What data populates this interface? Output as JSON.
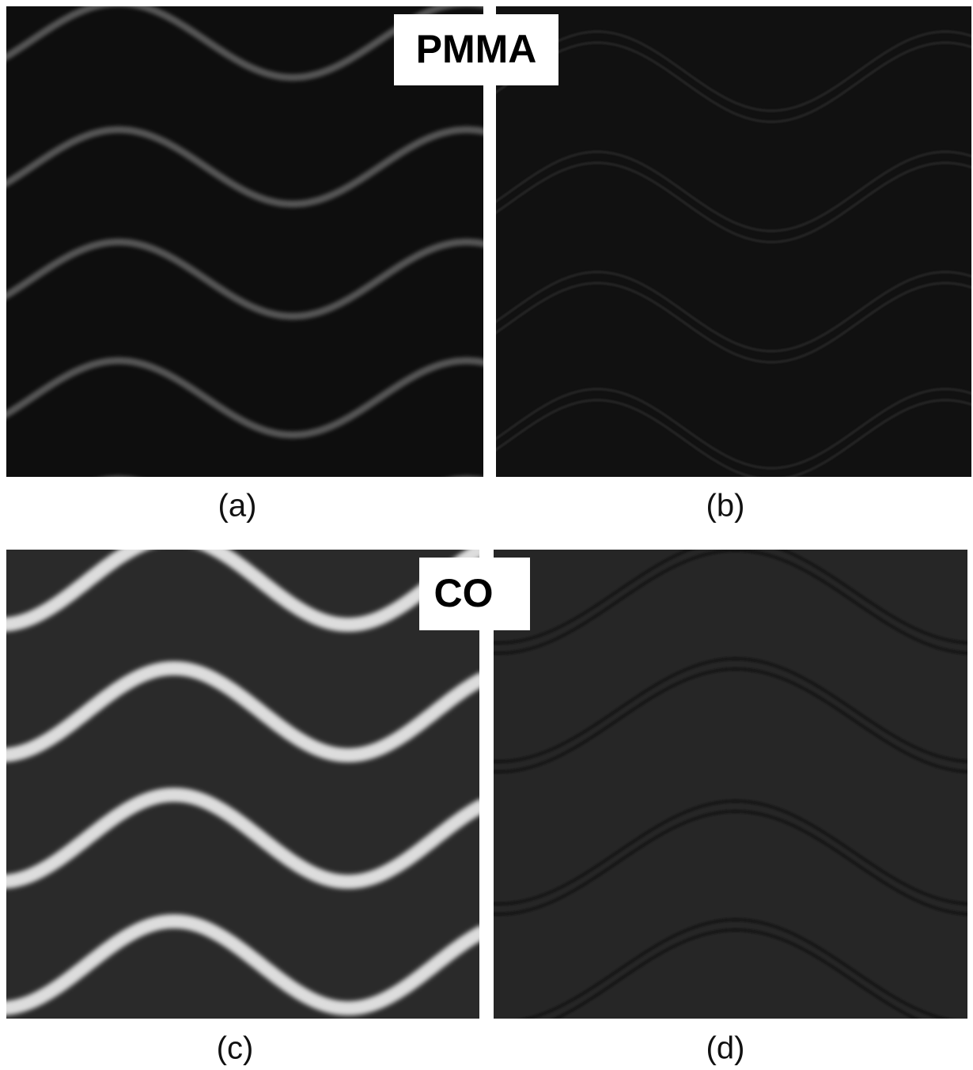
{
  "labels": {
    "top": "PMMA",
    "bottom": "CO"
  },
  "panels": [
    {
      "caption": "(a)"
    },
    {
      "caption": "(b)"
    },
    {
      "caption": "(c)"
    },
    {
      "caption": "(d)"
    }
  ]
}
